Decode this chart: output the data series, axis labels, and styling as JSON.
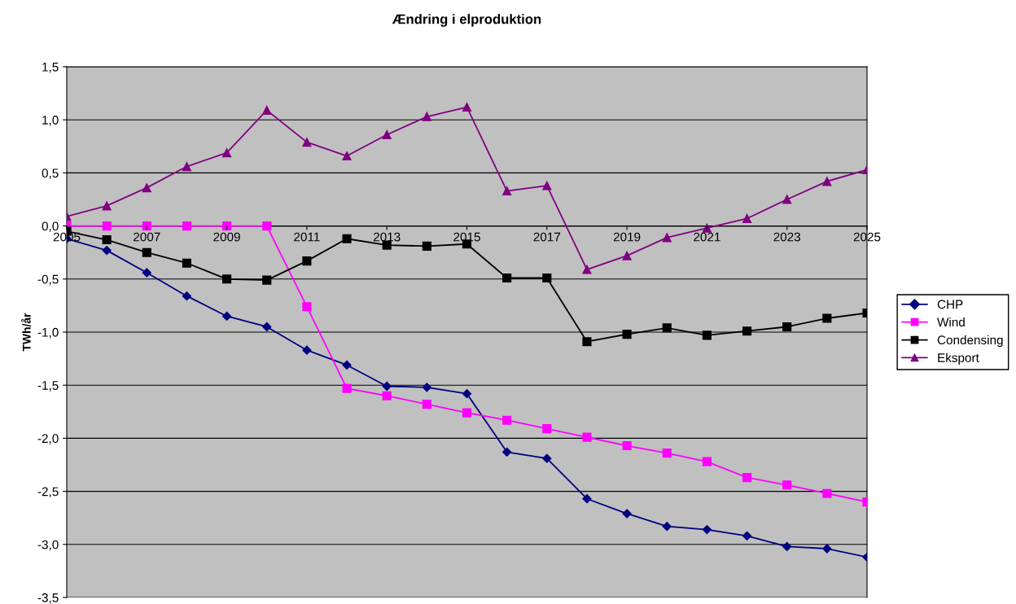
{
  "chart_data": {
    "type": "line",
    "title": "Ændring i elproduktion",
    "ylabel": "TWh/år",
    "x": [
      2005,
      2006,
      2007,
      2008,
      2009,
      2010,
      2011,
      2012,
      2013,
      2014,
      2015,
      2016,
      2017,
      2018,
      2019,
      2020,
      2021,
      2022,
      2023,
      2024,
      2025
    ],
    "series": [
      {
        "name": "CHP",
        "color": "#000080",
        "marker": "diamond",
        "values": [
          -0.12,
          -0.23,
          -0.44,
          -0.66,
          -0.85,
          -0.95,
          -1.17,
          -1.31,
          -1.51,
          -1.52,
          -1.58,
          -2.13,
          -2.19,
          -2.57,
          -2.71,
          -2.83,
          -2.86,
          -2.92,
          -3.02,
          -3.04,
          -3.12
        ]
      },
      {
        "name": "Wind",
        "color": "#ff00ff",
        "marker": "square",
        "values": [
          0,
          0,
          0,
          0,
          0,
          0,
          -0.76,
          -1.53,
          -1.6,
          -1.68,
          -1.76,
          -1.83,
          -1.91,
          -1.99,
          -2.07,
          -2.14,
          -2.22,
          -2.37,
          -2.44,
          -2.52,
          -2.6
        ]
      },
      {
        "name": "Condensing",
        "color": "#000000",
        "marker": "square",
        "values": [
          -0.05,
          -0.13,
          -0.25,
          -0.35,
          -0.5,
          -0.51,
          -0.33,
          -0.12,
          -0.18,
          -0.19,
          -0.17,
          -0.49,
          -0.49,
          -1.09,
          -1.02,
          -0.96,
          -1.03,
          -0.99,
          -0.95,
          -0.87,
          -0.82
        ]
      },
      {
        "name": "Eksport",
        "color": "#800080",
        "marker": "triangle",
        "values": [
          0.09,
          0.19,
          0.36,
          0.56,
          0.69,
          1.09,
          0.79,
          0.66,
          0.86,
          1.03,
          1.12,
          0.33,
          0.38,
          -0.41,
          -0.28,
          -0.11,
          -0.02,
          0.07,
          0.25,
          0.42,
          0.53
        ]
      }
    ],
    "xlim": [
      2005,
      2025
    ],
    "xticks": [
      2005,
      2007,
      2009,
      2011,
      2013,
      2015,
      2017,
      2019,
      2021,
      2023,
      2025
    ],
    "ylim": [
      -3.5,
      1.5
    ],
    "yticks": [
      {
        "value": -3.5,
        "label": "-3,5"
      },
      {
        "value": -3.0,
        "label": "-3,0"
      },
      {
        "value": -2.5,
        "label": "-2,5"
      },
      {
        "value": -2.0,
        "label": "-2,0"
      },
      {
        "value": -1.5,
        "label": "-1,5"
      },
      {
        "value": -1.0,
        "label": "-1,0"
      },
      {
        "value": -0.5,
        "label": "-0,5"
      },
      {
        "value": 0.0,
        "label": "0,0"
      },
      {
        "value": 0.5,
        "label": "0,5"
      },
      {
        "value": 1.0,
        "label": "1,0"
      },
      {
        "value": 1.5,
        "label": "1,5"
      }
    ],
    "grid": "y",
    "legend": "right",
    "line_style": "solid"
  }
}
